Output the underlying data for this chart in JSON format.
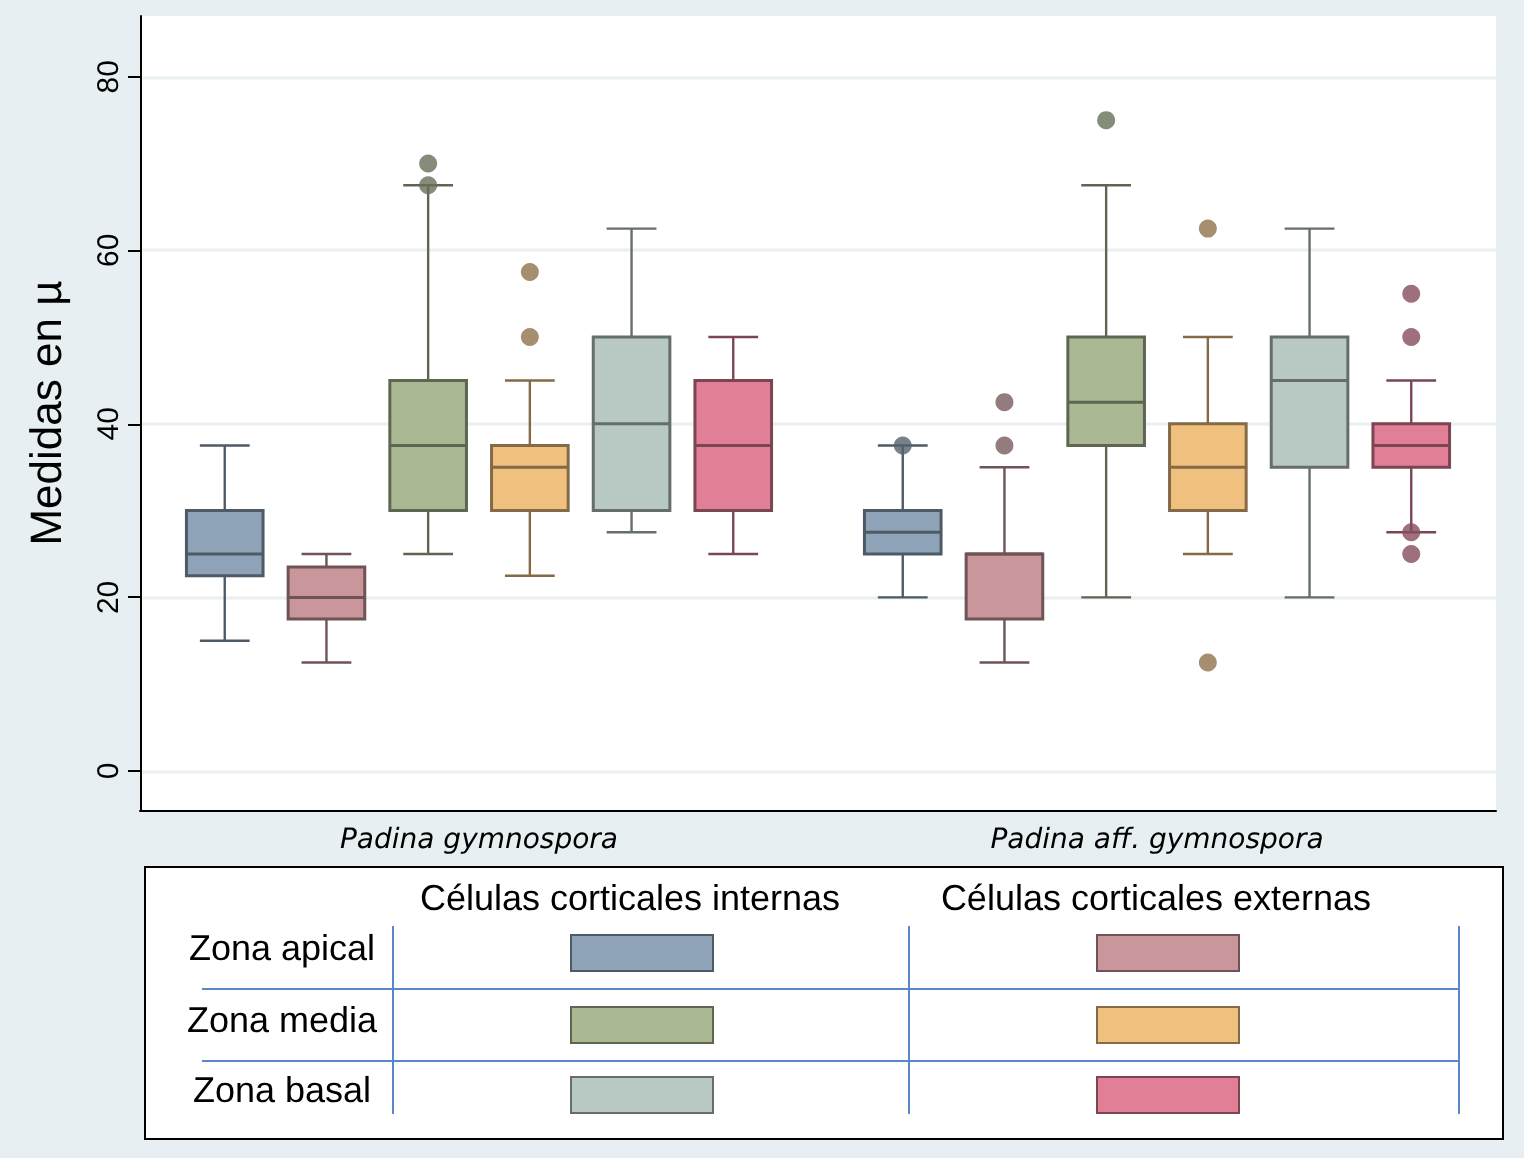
{
  "chart_data": {
    "type": "box",
    "ylabel": "Medidas en µ",
    "categories": [
      "Padina gymnospora",
      "Padina aff. gymnospora"
    ],
    "ylim": [
      -4.5,
      87
    ],
    "yticks": [
      0,
      20,
      40,
      60,
      80
    ],
    "grid": "y",
    "annotations": [
      "Células corticales internas",
      "Células corticales externas",
      "Zona apical",
      "Zona media",
      "Zona basal"
    ],
    "series": [
      {
        "color": "#8ea3b8",
        "boxes": [
          {
            "low": 15,
            "q1": 22.5,
            "median": 25,
            "q3": 30,
            "high": 37.5
          },
          {
            "low": 20,
            "q1": 25,
            "median": 27.5,
            "q3": 30,
            "high": 37.5,
            "outliers": [
              37.5
            ]
          }
        ]
      },
      {
        "color": "#c9969b",
        "boxes": [
          {
            "low": 12.5,
            "q1": 17.5,
            "median": 20,
            "q3": 23.5,
            "high": 25
          },
          {
            "low": 12.5,
            "q1": 17.5,
            "median": 25,
            "q3": 25,
            "high": 35,
            "outliers": [
              37.5,
              42.5
            ]
          }
        ]
      },
      {
        "color": "#aab994",
        "boxes": [
          {
            "low": 25,
            "q1": 30,
            "median": 37.5,
            "q3": 45,
            "high": 67.5,
            "outliers": [
              67.5,
              70
            ]
          },
          {
            "low": 20,
            "q1": 37.5,
            "median": 42.5,
            "q3": 50,
            "high": 67.5,
            "outliers": [
              75
            ]
          }
        ]
      },
      {
        "color": "#f0c07f",
        "boxes": [
          {
            "low": 22.5,
            "q1": 30,
            "median": 35,
            "q3": 37.5,
            "high": 45,
            "outliers": [
              50,
              57.5
            ]
          },
          {
            "low": 25,
            "q1": 30,
            "median": 35,
            "q3": 40,
            "high": 50,
            "outliers": [
              12.5,
              62.5
            ]
          }
        ]
      },
      {
        "color": "#b8c8c2",
        "boxes": [
          {
            "low": 27.5,
            "q1": 30,
            "median": 40,
            "q3": 50,
            "high": 62.5
          },
          {
            "low": 20,
            "q1": 35,
            "median": 45,
            "q3": 50,
            "high": 62.5
          }
        ]
      },
      {
        "color": "#e07f96",
        "boxes": [
          {
            "low": 25,
            "q1": 30,
            "median": 37.5,
            "q3": 45,
            "high": 50
          },
          {
            "low": 27.5,
            "q1": 35,
            "median": 37.5,
            "q3": 40,
            "high": 45,
            "outliers": [
              25,
              27.5,
              50,
              55
            ]
          }
        ]
      }
    ]
  }
}
